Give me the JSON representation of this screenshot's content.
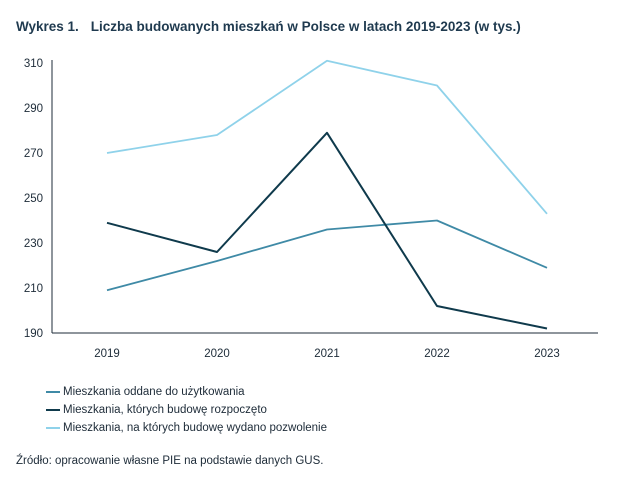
{
  "figure": {
    "label": "Wykres 1.",
    "title": "Liczba budowanych mieszkań w Polsce w latach 2019-2023 (w tys.)",
    "source": "Źródło: opracowanie własne PIE na podstawie danych GUS."
  },
  "chart_data": {
    "type": "line",
    "title": "Liczba budowanych mieszkań w Polsce w latach 2019-2023 (w tys.)",
    "xlabel": "",
    "ylabel": "",
    "categories": [
      "2019",
      "2020",
      "2021",
      "2022",
      "2023"
    ],
    "ylim": [
      190,
      310
    ],
    "yticks": [
      "190",
      "210",
      "230",
      "250",
      "270",
      "290",
      "310"
    ],
    "grid": false,
    "legend_position": "bottom-left",
    "series": [
      {
        "name": "Mieszkania oddane do użytkowania",
        "color": "#3f8aa6",
        "values": [
          209,
          222,
          236,
          240,
          219
        ]
      },
      {
        "name": "Mieszkania, których budowę rozpoczęto",
        "color": "#0f3a4c",
        "values": [
          239,
          226,
          279,
          202,
          192
        ]
      },
      {
        "name": "Mieszkania, na których budowę wydano pozwolenie",
        "color": "#8fd2ea",
        "values": [
          270,
          278,
          311,
          300,
          243
        ]
      }
    ]
  }
}
